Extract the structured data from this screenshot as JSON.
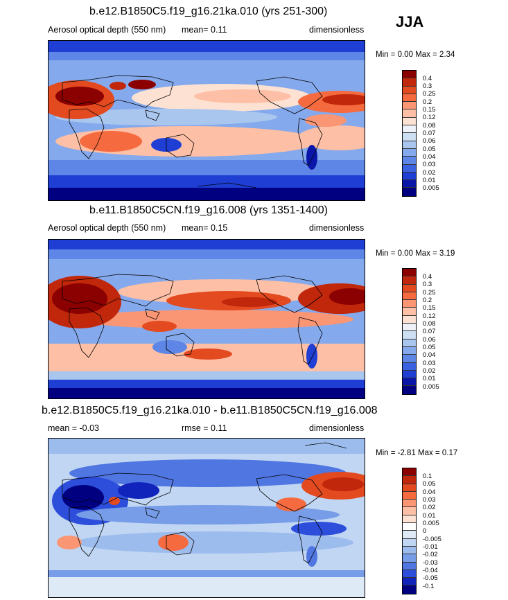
{
  "season": "JJA",
  "panels": [
    {
      "title": "b.e12.B1850C5.f19_g16.21ka.010 (yrs 251-300)",
      "variable": "Aerosol optical depth (550 nm)",
      "stat_left": "mean=  0.11",
      "units": "dimensionless",
      "minmax": "Min =   0.00 Max =   2.34",
      "levels": [
        "0.4",
        "0.3",
        "0.25",
        "0.2",
        "0.15",
        "0.12",
        "0.08",
        "0.07",
        "0.06",
        "0.05",
        "0.04",
        "0.03",
        "0.02",
        "0.01",
        "0.005"
      ]
    },
    {
      "title": "b.e11.B1850C5CN.f19_g16.008 (yrs 1351-1400)",
      "variable": "Aerosol optical depth (550 nm)",
      "stat_left": "mean=  0.15",
      "units": "dimensionless",
      "minmax": "Min =   0.00 Max =   3.19",
      "levels": [
        "0.4",
        "0.3",
        "0.25",
        "0.2",
        "0.15",
        "0.12",
        "0.08",
        "0.07",
        "0.06",
        "0.05",
        "0.04",
        "0.03",
        "0.02",
        "0.01",
        "0.005"
      ]
    },
    {
      "title": "b.e12.B1850C5.f19_g16.21ka.010 - b.e11.B1850C5CN.f19_g16.008",
      "stat_left": "mean =  -0.03",
      "stat_mid": "rmse =  0.11",
      "units": "dimensionless",
      "minmax": "Min =  -2.81 Max =   0.17",
      "levels": [
        "0.1",
        "0.05",
        "0.04",
        "0.03",
        "0.02",
        "0.01",
        "0.005",
        "0",
        "-0.005",
        "-0.01",
        "-0.02",
        "-0.03",
        "-0.04",
        "-0.05",
        "-0.1"
      ]
    }
  ],
  "colors": {
    "abs_scale": [
      "#8b0000",
      "#c1270a",
      "#e34a20",
      "#f56b3f",
      "#fb9675",
      "#fdbfa5",
      "#fde2d3",
      "#eef2f8",
      "#cddff2",
      "#a9c6ee",
      "#84a9ec",
      "#5d86e6",
      "#3b63df",
      "#1e3ed4",
      "#0a16a8",
      "#000080"
    ],
    "diff_scale": [
      "#8b0000",
      "#c1270a",
      "#e34a20",
      "#f56b3f",
      "#fb9675",
      "#fdbfa5",
      "#fde2d3",
      "#ffffff",
      "#dfeaf7",
      "#c0d6f2",
      "#9dbcee",
      "#779ce8",
      "#5076e2",
      "#2c4edb",
      "#1024bc",
      "#000080"
    ]
  }
}
